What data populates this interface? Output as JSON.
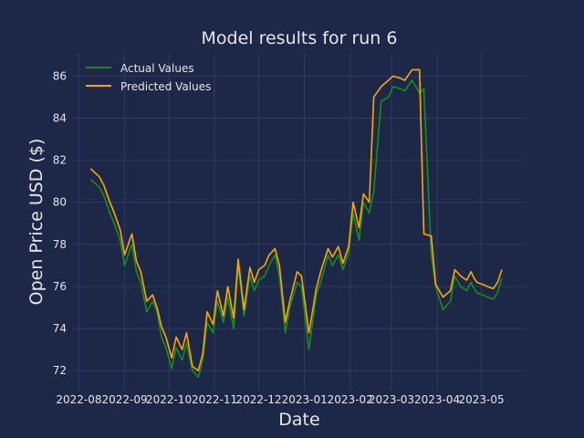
{
  "chart_data": {
    "type": "line",
    "title": "Model results for run 6",
    "xlabel": "Date",
    "ylabel": "Open Price USD ($)",
    "x_ticks": [
      "2022-08",
      "2022-09",
      "2022-10",
      "2022-11",
      "2022-12",
      "2023-01",
      "2023-02",
      "2023-03",
      "2023-04",
      "2023-05"
    ],
    "y_ticks": [
      72,
      74,
      76,
      78,
      80,
      82,
      84,
      86
    ],
    "ylim": [
      71.1,
      87.1
    ],
    "xlim": [
      "2022-07-28",
      "2023-05-31"
    ],
    "grid": true,
    "legend_position": "top-left",
    "background_color": "#1d2747",
    "grid_color": "#2e3b66",
    "x": [
      "2022-08-09",
      "2022-08-15",
      "2022-08-18",
      "2022-08-22",
      "2022-08-25",
      "2022-08-29",
      "2022-09-01",
      "2022-09-06",
      "2022-09-09",
      "2022-09-12",
      "2022-09-16",
      "2022-09-20",
      "2022-09-23",
      "2022-09-26",
      "2022-09-29",
      "2022-10-03",
      "2022-10-06",
      "2022-10-10",
      "2022-10-13",
      "2022-10-17",
      "2022-10-21",
      "2022-10-24",
      "2022-10-27",
      "2022-10-31",
      "2022-11-03",
      "2022-11-07",
      "2022-11-10",
      "2022-11-14",
      "2022-11-17",
      "2022-11-21",
      "2022-11-25",
      "2022-11-28",
      "2022-12-01",
      "2022-12-05",
      "2022-12-08",
      "2022-12-12",
      "2022-12-15",
      "2022-12-19",
      "2022-12-22",
      "2022-12-27",
      "2022-12-30",
      "2023-01-04",
      "2023-01-09",
      "2023-01-12",
      "2023-01-17",
      "2023-01-20",
      "2023-01-24",
      "2023-01-27",
      "2023-01-31",
      "2023-02-03",
      "2023-02-07",
      "2023-02-10",
      "2023-02-14",
      "2023-02-17",
      "2023-02-22",
      "2023-02-27",
      "2023-03-02",
      "2023-03-07",
      "2023-03-10",
      "2023-03-15",
      "2023-03-20",
      "2023-03-23",
      "2023-03-28",
      "2023-03-31",
      "2023-04-05",
      "2023-04-10",
      "2023-04-13",
      "2023-04-17",
      "2023-04-21",
      "2023-04-24",
      "2023-04-26",
      "2023-04-28",
      "2023-05-02",
      "2023-05-05",
      "2023-05-09",
      "2023-05-12",
      "2023-05-15"
    ],
    "series": [
      {
        "name": "Actual Values",
        "color": "#1a8c1a",
        "values": [
          81.1,
          80.7,
          80.3,
          79.5,
          79.0,
          78.2,
          77.0,
          78.0,
          76.7,
          76.2,
          74.8,
          75.3,
          74.8,
          73.6,
          73.1,
          72.1,
          73.1,
          72.5,
          73.3,
          72.0,
          71.7,
          72.5,
          74.3,
          73.8,
          75.3,
          74.3,
          75.5,
          74.0,
          77.0,
          74.6,
          76.5,
          75.8,
          76.3,
          76.5,
          77.0,
          77.5,
          76.5,
          73.8,
          75.0,
          76.2,
          76.0,
          73.0,
          75.6,
          76.2,
          77.5,
          77.0,
          77.5,
          76.8,
          77.6,
          79.5,
          78.2,
          80.0,
          79.5,
          80.5,
          84.8,
          85.0,
          85.5,
          85.4,
          85.3,
          85.8,
          85.2,
          85.4,
          77.5,
          76.0,
          74.9,
          75.3,
          76.5,
          76.0,
          75.8,
          76.2,
          75.9,
          75.7,
          75.6,
          75.5,
          75.4,
          75.7,
          76.4
        ]
      },
      {
        "name": "Predicted Values",
        "color": "#ffa500",
        "values": [
          81.6,
          81.2,
          80.8,
          80.0,
          79.5,
          78.7,
          77.5,
          78.5,
          77.2,
          76.7,
          75.3,
          75.6,
          75.0,
          74.1,
          73.6,
          72.6,
          73.6,
          73.0,
          73.8,
          72.2,
          72.0,
          72.8,
          74.8,
          74.2,
          75.8,
          74.6,
          76.0,
          74.5,
          77.3,
          74.9,
          76.9,
          76.2,
          76.8,
          77.0,
          77.5,
          77.8,
          77.0,
          74.3,
          75.3,
          76.7,
          76.5,
          73.8,
          75.9,
          76.7,
          77.8,
          77.4,
          77.9,
          77.1,
          77.9,
          80.0,
          78.8,
          80.4,
          80.0,
          85.0,
          85.5,
          85.8,
          86.0,
          85.9,
          85.8,
          86.3,
          86.3,
          78.5,
          78.4,
          76.1,
          75.5,
          75.8,
          76.8,
          76.5,
          76.3,
          76.7,
          76.4,
          76.2,
          76.1,
          76.0,
          75.9,
          76.2,
          76.8
        ]
      }
    ]
  }
}
